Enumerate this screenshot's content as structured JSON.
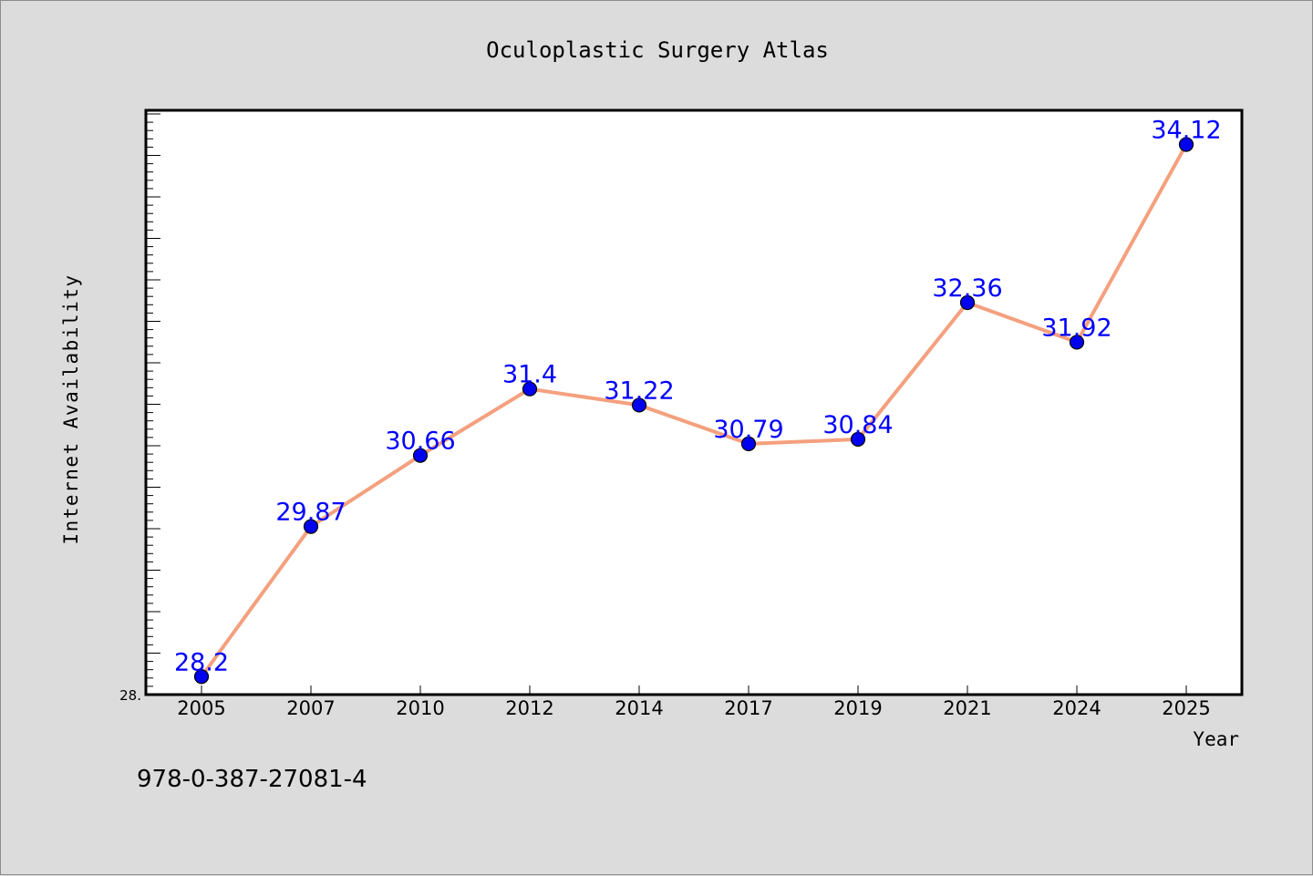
{
  "chart_data": {
    "type": "line",
    "title": "Oculoplastic Surgery Atlas",
    "xlabel": "Year",
    "ylabel": "Internet Availability",
    "categories": [
      "2005",
      "2007",
      "2010",
      "2012",
      "2014",
      "2017",
      "2019",
      "2021",
      "2024",
      "2025"
    ],
    "series": [
      {
        "values": [
          28.2,
          29.87,
          30.66,
          31.4,
          31.22,
          30.79,
          30.84,
          32.36,
          31.92,
          34.12
        ],
        "data_labels": [
          "28.2",
          "29.87",
          "30.66",
          "31.4",
          "31.22",
          "30.79",
          "30.84",
          "32.36",
          "31.92",
          "34.12"
        ],
        "line_color": "#f4a07e",
        "marker_color": "#0000f0"
      }
    ],
    "ylim": [
      28.0,
      34.5
    ],
    "ytick_label": "28.",
    "grid": false,
    "legend": "none",
    "label_color": "#0000ff"
  },
  "footer": {
    "isbn": "978-0-387-27081-4"
  },
  "colors": {
    "background": "#dcdcdc",
    "plot_area": "#ffffff",
    "axis": "#000000"
  }
}
